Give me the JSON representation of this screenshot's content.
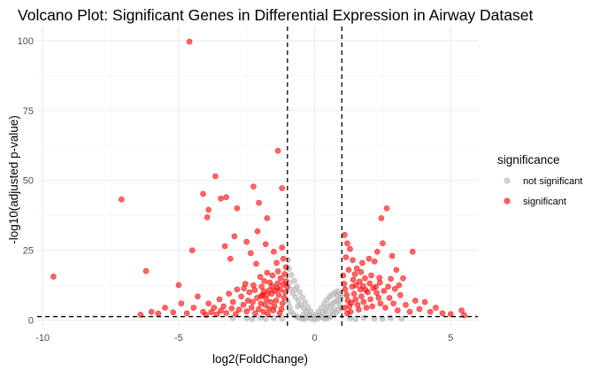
{
  "chart_data": {
    "type": "scatter",
    "title": "Volcano Plot: Significant Genes in Differential Expression in Airway Dataset",
    "xlabel": "log2(FoldChange)",
    "ylabel": "-log10(adjusted p-value)",
    "xlim": [
      -10.2,
      6.0
    ],
    "ylim": [
      -2.0,
      105.0
    ],
    "x_ticks": [
      -10,
      -5,
      0,
      5
    ],
    "y_ticks": [
      0,
      25,
      50,
      75,
      100
    ],
    "grid": true,
    "legend": {
      "title": "significance",
      "position": "right"
    },
    "reference_lines": [
      {
        "orientation": "vertical",
        "x": -1,
        "style": "dashed"
      },
      {
        "orientation": "vertical",
        "x": 1,
        "style": "dashed"
      },
      {
        "orientation": "horizontal",
        "y": 1.3,
        "style": "dashed"
      }
    ],
    "series": [
      {
        "name": "not significant",
        "color": "#b3b3b3",
        "points": [
          [
            -0.95,
            18.4
          ],
          [
            -0.85,
            16.2
          ],
          [
            -0.75,
            14.1
          ],
          [
            -0.65,
            12.0
          ],
          [
            -0.55,
            10.1
          ],
          [
            -0.45,
            8.3
          ],
          [
            -0.35,
            6.5
          ],
          [
            -0.25,
            4.7
          ],
          [
            -0.15,
            3.2
          ],
          [
            -0.05,
            1.8
          ],
          [
            0.05,
            1.9
          ],
          [
            0.15,
            3.1
          ],
          [
            0.25,
            4.5
          ],
          [
            0.35,
            6.0
          ],
          [
            0.45,
            7.3
          ],
          [
            0.55,
            8.4
          ],
          [
            0.65,
            9.2
          ],
          [
            0.75,
            9.9
          ],
          [
            0.85,
            10.4
          ],
          [
            0.95,
            9.5
          ],
          [
            -0.9,
            11.2
          ],
          [
            -0.8,
            9.6
          ],
          [
            -0.7,
            8.2
          ],
          [
            -0.6,
            6.9
          ],
          [
            -0.5,
            5.5
          ],
          [
            -0.4,
            4.2
          ],
          [
            -0.3,
            3.0
          ],
          [
            -0.2,
            1.8
          ],
          [
            0.2,
            1.6
          ],
          [
            0.3,
            2.8
          ],
          [
            0.4,
            3.9
          ],
          [
            0.5,
            4.8
          ],
          [
            0.6,
            5.6
          ],
          [
            0.7,
            6.3
          ],
          [
            0.8,
            6.8
          ],
          [
            0.9,
            7.1
          ],
          [
            -0.98,
            6.5
          ],
          [
            -0.92,
            4.8
          ],
          [
            -0.88,
            3.1
          ],
          [
            -0.78,
            2.2
          ],
          [
            -0.68,
            1.4
          ],
          [
            -0.58,
            0.9
          ],
          [
            -0.48,
            0.6
          ],
          [
            -0.38,
            0.4
          ],
          [
            0.38,
            0.5
          ],
          [
            0.48,
            0.8
          ],
          [
            0.58,
            1.2
          ],
          [
            0.68,
            1.9
          ],
          [
            0.78,
            2.7
          ],
          [
            0.88,
            3.6
          ],
          [
            0.98,
            4.4
          ],
          [
            -0.97,
            21.5
          ],
          [
            -0.93,
            13.5
          ],
          [
            -0.72,
            11.0
          ],
          [
            -0.62,
            5.0
          ],
          [
            -0.42,
            2.0
          ],
          [
            -0.28,
            1.0
          ],
          [
            -0.12,
            0.5
          ],
          [
            0.0,
            0.3
          ],
          [
            0.12,
            0.6
          ],
          [
            0.28,
            1.2
          ],
          [
            0.42,
            2.2
          ],
          [
            0.62,
            3.3
          ],
          [
            0.72,
            4.1
          ],
          [
            0.92,
            5.3
          ],
          [
            0.96,
            8.2
          ],
          [
            0.83,
            8.8
          ],
          [
            -1.5,
            0.8
          ],
          [
            -2.0,
            0.9
          ],
          [
            -2.5,
            0.7
          ],
          [
            -3.0,
            0.8
          ],
          [
            -1.8,
            0.5
          ],
          [
            -2.3,
            0.4
          ],
          [
            -1.2,
            0.6
          ],
          [
            1.3,
            0.7
          ],
          [
            1.8,
            0.9
          ],
          [
            2.2,
            0.6
          ],
          [
            2.8,
            0.8
          ],
          [
            1.5,
            0.4
          ],
          [
            2.5,
            0.5
          ],
          [
            3.2,
            0.6
          ]
        ]
      },
      {
        "name": "significant",
        "color": "#ff0000",
        "points": [
          [
            -4.6,
            99.6
          ],
          [
            -9.6,
            15.6
          ],
          [
            -7.1,
            43.2
          ],
          [
            -6.2,
            17.6
          ],
          [
            -5.0,
            12.6
          ],
          [
            -4.5,
            25.0
          ],
          [
            -4.1,
            45.2
          ],
          [
            -3.9,
            39.5
          ],
          [
            -3.95,
            36.8
          ],
          [
            -3.65,
            51.5
          ],
          [
            -3.45,
            43.5
          ],
          [
            -3.25,
            44.0
          ],
          [
            -2.25,
            47.8
          ],
          [
            -2.05,
            42.0
          ],
          [
            -2.85,
            40.0
          ],
          [
            -1.35,
            60.6
          ],
          [
            -1.2,
            47.2
          ],
          [
            -1.75,
            36.5
          ],
          [
            -2.1,
            31.8
          ],
          [
            -2.95,
            30.0
          ],
          [
            -3.3,
            26.5
          ],
          [
            -2.5,
            28.0
          ],
          [
            -1.8,
            27.2
          ],
          [
            -3.1,
            22.0
          ],
          [
            -2.35,
            24.0
          ],
          [
            -2.15,
            20.2
          ],
          [
            -1.5,
            24.5
          ],
          [
            -1.4,
            20.5
          ],
          [
            -1.2,
            26.0
          ],
          [
            -1.15,
            22.0
          ],
          [
            -1.05,
            19.0
          ],
          [
            -1.1,
            16.5
          ],
          [
            -1.25,
            15.0
          ],
          [
            -1.35,
            17.5
          ],
          [
            -1.55,
            16.0
          ],
          [
            -1.65,
            13.5
          ],
          [
            -1.75,
            17.0
          ],
          [
            -1.85,
            14.0
          ],
          [
            -1.95,
            12.0
          ],
          [
            -2.0,
            15.5
          ],
          [
            -2.25,
            12.5
          ],
          [
            -2.4,
            10.0
          ],
          [
            -2.55,
            13.0
          ],
          [
            -2.7,
            8.5
          ],
          [
            -2.85,
            11.0
          ],
          [
            -3.0,
            6.5
          ],
          [
            -3.15,
            9.5
          ],
          [
            -3.35,
            5.0
          ],
          [
            -3.5,
            7.5
          ],
          [
            -3.7,
            4.5
          ],
          [
            -3.9,
            6.0
          ],
          [
            -4.1,
            3.0
          ],
          [
            -4.3,
            8.5
          ],
          [
            -4.45,
            4.5
          ],
          [
            -4.7,
            2.5
          ],
          [
            -4.9,
            6.0
          ],
          [
            -5.2,
            2.8
          ],
          [
            -5.5,
            4.5
          ],
          [
            -5.75,
            2.4
          ],
          [
            -6.0,
            3.0
          ],
          [
            -6.4,
            2.0
          ],
          [
            -1.02,
            12.0
          ],
          [
            -1.08,
            10.0
          ],
          [
            -1.12,
            8.0
          ],
          [
            -1.18,
            6.0
          ],
          [
            -1.22,
            4.0
          ],
          [
            -1.28,
            2.5
          ],
          [
            -1.32,
            9.0
          ],
          [
            -1.38,
            11.5
          ],
          [
            -1.42,
            7.0
          ],
          [
            -1.48,
            5.0
          ],
          [
            -1.52,
            3.5
          ],
          [
            -1.58,
            9.5
          ],
          [
            -1.62,
            6.5
          ],
          [
            -1.68,
            4.2
          ],
          [
            -1.72,
            2.2
          ],
          [
            -1.78,
            7.5
          ],
          [
            -1.82,
            5.5
          ],
          [
            -1.88,
            3.0
          ],
          [
            -1.92,
            9.0
          ],
          [
            -1.98,
            6.0
          ],
          [
            -2.05,
            4.0
          ],
          [
            -2.12,
            8.0
          ],
          [
            -2.18,
            2.5
          ],
          [
            -2.28,
            6.5
          ],
          [
            -2.32,
            4.5
          ],
          [
            -2.45,
            7.0
          ],
          [
            -2.5,
            3.2
          ],
          [
            -2.62,
            5.5
          ],
          [
            -2.78,
            3.8
          ],
          [
            -2.9,
            2.2
          ],
          [
            -3.05,
            4.2
          ],
          [
            -3.25,
            2.6
          ],
          [
            -3.45,
            3.4
          ],
          [
            -3.6,
            2.1
          ],
          [
            -3.8,
            2.9
          ],
          [
            -4.0,
            1.9
          ],
          [
            -1.06,
            14.0
          ],
          [
            -1.16,
            12.8
          ],
          [
            -1.26,
            11.0
          ],
          [
            -1.36,
            13.2
          ],
          [
            -1.46,
            10.5
          ],
          [
            -1.56,
            12.2
          ],
          [
            -1.66,
            10.8
          ],
          [
            -1.76,
            9.2
          ],
          [
            -1.86,
            10.3
          ],
          [
            -1.96,
            8.6
          ],
          [
            -2.2,
            10.8
          ],
          [
            -2.6,
            11.4
          ],
          [
            1.1,
            30.5
          ],
          [
            1.2,
            27.5
          ],
          [
            1.3,
            25.5
          ],
          [
            1.15,
            22.5
          ],
          [
            1.4,
            21.5
          ],
          [
            1.55,
            18.5
          ],
          [
            1.75,
            20.5
          ],
          [
            1.85,
            15.0
          ],
          [
            2.0,
            22.0
          ],
          [
            2.2,
            21.0
          ],
          [
            2.3,
            24.5
          ],
          [
            2.5,
            27.5
          ],
          [
            2.65,
            40.0
          ],
          [
            2.45,
            36.5
          ],
          [
            2.85,
            23.0
          ],
          [
            3.0,
            18.0
          ],
          [
            3.6,
            24.5
          ],
          [
            3.25,
            15.0
          ],
          [
            1.05,
            16.0
          ],
          [
            1.08,
            13.0
          ],
          [
            1.12,
            11.0
          ],
          [
            1.18,
            9.0
          ],
          [
            1.22,
            7.0
          ],
          [
            1.28,
            5.0
          ],
          [
            1.32,
            3.0
          ],
          [
            1.38,
            12.0
          ],
          [
            1.45,
            9.5
          ],
          [
            1.5,
            7.5
          ],
          [
            1.58,
            5.5
          ],
          [
            1.62,
            3.8
          ],
          [
            1.68,
            11.0
          ],
          [
            1.72,
            8.5
          ],
          [
            1.8,
            6.5
          ],
          [
            1.9,
            4.5
          ],
          [
            1.95,
            10.0
          ],
          [
            2.05,
            7.5
          ],
          [
            2.12,
            5.0
          ],
          [
            2.25,
            12.0
          ],
          [
            2.35,
            8.0
          ],
          [
            2.42,
            6.0
          ],
          [
            2.55,
            10.5
          ],
          [
            2.6,
            4.5
          ],
          [
            2.75,
            8.0
          ],
          [
            2.9,
            6.0
          ],
          [
            3.05,
            3.5
          ],
          [
            3.15,
            9.0
          ],
          [
            3.35,
            5.5
          ],
          [
            3.5,
            3.0
          ],
          [
            3.7,
            7.0
          ],
          [
            3.85,
            4.0
          ],
          [
            4.05,
            6.5
          ],
          [
            4.25,
            3.0
          ],
          [
            4.45,
            4.5
          ],
          [
            4.7,
            2.5
          ],
          [
            5.0,
            2.2
          ],
          [
            5.4,
            3.5
          ],
          [
            5.5,
            1.8
          ],
          [
            1.1,
            4.5
          ],
          [
            1.2,
            2.5
          ],
          [
            1.35,
            6.2
          ],
          [
            1.42,
            14.5
          ],
          [
            1.52,
            12.5
          ],
          [
            1.65,
            13.8
          ],
          [
            1.78,
            12.2
          ],
          [
            1.88,
            10.8
          ],
          [
            2.02,
            13.2
          ],
          [
            2.15,
            11.5
          ],
          [
            2.28,
            9.8
          ],
          [
            2.4,
            13.5
          ],
          [
            2.7,
            12.0
          ],
          [
            2.95,
            11.2
          ],
          [
            3.1,
            12.5
          ],
          [
            1.25,
            18.0
          ],
          [
            1.48,
            16.5
          ],
          [
            1.7,
            17.2
          ],
          [
            2.08,
            16.0
          ],
          [
            2.38,
            15.2
          ],
          [
            2.8,
            14.8
          ]
        ]
      }
    ]
  }
}
